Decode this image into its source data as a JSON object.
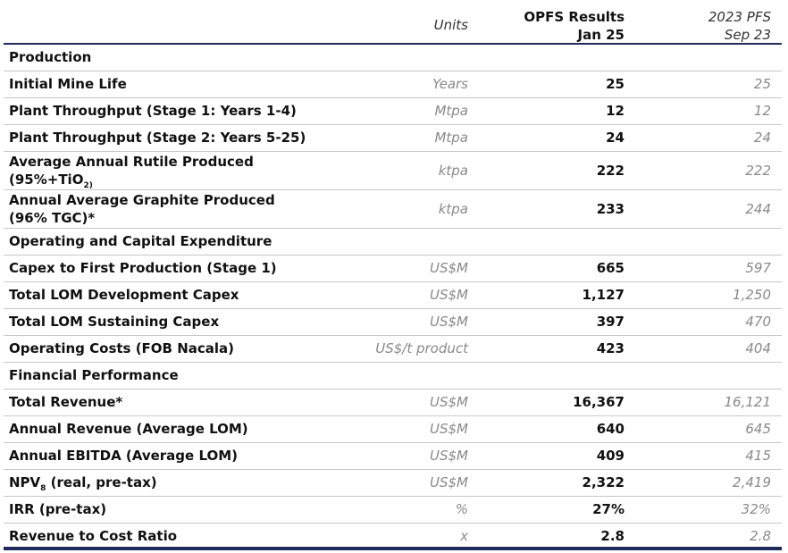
{
  "header": {
    "units": "Units",
    "opfs_line1": "OPFS Results",
    "opfs_line2": "Jan 25",
    "pfs_line1": "2023 PFS",
    "pfs_line2": "Sep 23"
  },
  "sections": {
    "production": "Production",
    "opex_capex": "Operating and Capital Expenditure",
    "financial": "Financial Performance"
  },
  "rows": {
    "mine_life": {
      "label": "Initial Mine Life",
      "unit": "Years",
      "opfs": "25",
      "pfs": "25"
    },
    "throughput1": {
      "label": "Plant Throughput (Stage 1: Years 1-4)",
      "unit": "Mtpa",
      "opfs": "12",
      "pfs": "12"
    },
    "throughput2": {
      "label": "Plant Throughput (Stage 2: Years 5-25)",
      "unit": "Mtpa",
      "opfs": "24",
      "pfs": "24"
    },
    "rutile": {
      "label_line1": "Average Annual Rutile Produced",
      "label_line2_a": "(95%+TiO",
      "label_line2_sub": "2)",
      "unit": "ktpa",
      "opfs": "222",
      "pfs": "222"
    },
    "graphite": {
      "label_line1": "Annual Average Graphite Produced",
      "label_line2": "(96% TGC)*",
      "unit": "ktpa",
      "opfs": "233",
      "pfs": "244"
    },
    "capex_first": {
      "label": "Capex to First Production (Stage 1)",
      "unit": "US$M",
      "opfs": "665",
      "pfs": "597"
    },
    "dev_capex": {
      "label": "Total LOM Development Capex",
      "unit": "US$M",
      "opfs": "1,127",
      "pfs": "1,250"
    },
    "sust_capex": {
      "label": "Total LOM Sustaining Capex",
      "unit": "US$M",
      "opfs": "397",
      "pfs": "470"
    },
    "op_costs": {
      "label": "Operating Costs (FOB Nacala)",
      "unit": "US$/t product",
      "opfs": "423",
      "pfs": "404"
    },
    "revenue": {
      "label": "Total Revenue*",
      "unit": "US$M",
      "opfs": "16,367",
      "pfs": "16,121"
    },
    "annual_rev": {
      "label": "Annual Revenue (Average LOM)",
      "unit": "US$M",
      "opfs": "640",
      "pfs": "645"
    },
    "ebitda": {
      "label": "Annual EBITDA (Average LOM)",
      "unit": "US$M",
      "opfs": "409",
      "pfs": "415"
    },
    "npv": {
      "label_a": "NPV",
      "label_sub": "8",
      "label_b": " (real, pre-tax)",
      "unit": "US$M",
      "opfs": "2,322",
      "pfs": "2,419"
    },
    "irr": {
      "label": "IRR (pre-tax)",
      "unit": "%",
      "opfs": "27%",
      "pfs": "32%"
    },
    "ratio": {
      "label": "Revenue to Cost Ratio",
      "unit": "x",
      "opfs": "2.8",
      "pfs": "2.8"
    }
  }
}
